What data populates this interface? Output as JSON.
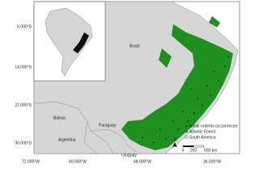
{
  "map": {
    "countries": [
      "Brazil",
      "Bolivia",
      "Paraguay",
      "Argentina",
      "Uruguay"
    ],
    "lat_labels": [
      "6.000°S",
      "14.000°S",
      "22.000°S",
      "30.000°S"
    ],
    "lon_labels": [
      "72.000°W",
      "60.000°W",
      "48.000°W",
      "36.000°W"
    ],
    "legend": [
      "Small rodents occurrences",
      "Atlantic Forest",
      "South America"
    ],
    "scale": [
      "0",
      "250",
      "500 km"
    ],
    "north": "N"
  }
}
